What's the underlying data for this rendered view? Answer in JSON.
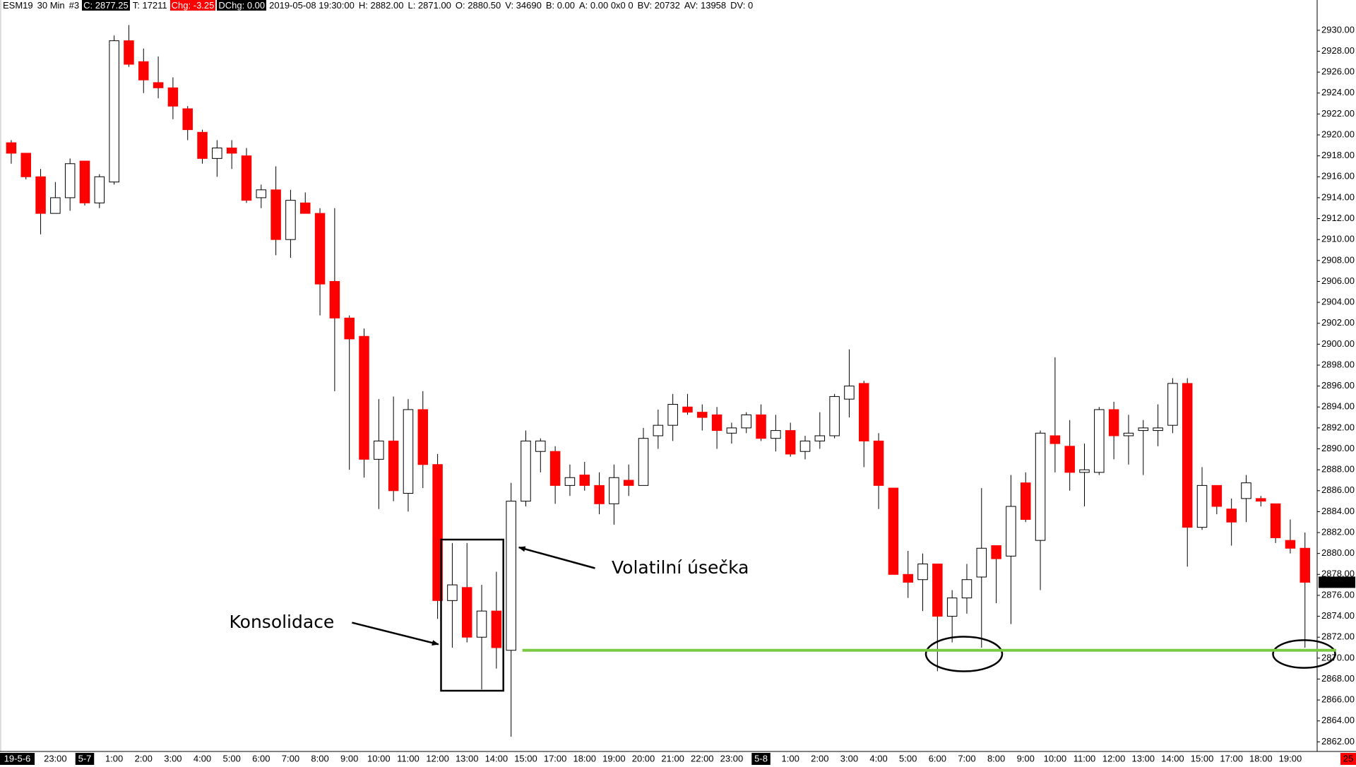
{
  "chart_data": {
    "type": "candlestick",
    "header": [
      {
        "text": "ESM19"
      },
      {
        "text": "30 Min"
      },
      {
        "text": "#3"
      },
      {
        "text": "C: 2877.25",
        "bg": "#000000"
      },
      {
        "text": "T: 17211"
      },
      {
        "text": "Chg: -3.25",
        "bg": "#ff0000"
      },
      {
        "text": "DChg: 0.00",
        "bg": "#000000"
      },
      {
        "text": "2019-05-08 19:30:00"
      },
      {
        "text": "H: 2882.00"
      },
      {
        "text": "L: 2871.00"
      },
      {
        "text": "O: 2880.50"
      },
      {
        "text": "V: 34690"
      },
      {
        "text": "B: 0.00"
      },
      {
        "text": "A: 0.00 0x0 0"
      },
      {
        "text": "BV: 20732"
      },
      {
        "text": "AV: 13958"
      },
      {
        "text": "DV: 0"
      }
    ],
    "categories": [
      "19-5-6",
      null,
      null,
      "23:00",
      null,
      "5-7",
      null,
      "1:00",
      null,
      "2:00",
      null,
      "3:00",
      null,
      "4:00",
      null,
      "5:00",
      null,
      "6:00",
      null,
      "7:00",
      null,
      "8:00",
      null,
      "9:00",
      null,
      "10:00",
      null,
      "11:00",
      null,
      "12:00",
      null,
      "13:00",
      null,
      "14:00",
      null,
      "15:00",
      null,
      "17:00",
      null,
      "18:00",
      null,
      "19:00",
      null,
      "20:00",
      null,
      "21:00",
      null,
      "22:00",
      null,
      "23:00",
      null,
      "5-8",
      null,
      "1:00",
      null,
      "2:00",
      null,
      "3:00",
      null,
      "4:00",
      null,
      "5:00",
      null,
      "6:00",
      null,
      "7:00",
      null,
      "8:00",
      null,
      "9:00",
      null,
      "10:00",
      null,
      "11:00",
      null,
      "12:00",
      null,
      "13:00",
      null,
      "14:00",
      null,
      "15:00",
      null,
      "17:00",
      null,
      "18:00",
      null,
      "19:00",
      null
    ],
    "open": [
      2919.25,
      2918.25,
      2916,
      2912.5,
      2914,
      2917.5,
      2913.5,
      2915.5,
      2929,
      2927,
      2925,
      2924.5,
      2922.5,
      2920.25,
      2917.75,
      2918.75,
      2918,
      2914,
      2914.75,
      2910,
      2913.5,
      2912.5,
      2906,
      2902.5,
      2900.75,
      2889,
      2890.75,
      2885.75,
      2893.75,
      2888.5,
      2875.5,
      2876.75,
      2872,
      2874.5,
      2870.75,
      2885,
      2889.75,
      2889.75,
      2886.5,
      2887.5,
      2886.5,
      2884.75,
      2887,
      2886.5,
      2891.25,
      2892.25,
      2894,
      2893.5,
      2893.25,
      2891.5,
      2892,
      2893.25,
      2891,
      2891.75,
      2889.75,
      2890.75,
      2891.25,
      2894.75,
      2896.25,
      2890.75,
      2886.25,
      2878,
      2877.5,
      2879,
      2874,
      2875.75,
      2877.75,
      2880.75,
      2879.75,
      2886.75,
      2881.25,
      2891.25,
      2890.25,
      2887.75,
      2887.75,
      2893.75,
      2891.25,
      2891.75,
      2891.75,
      2892.25,
      2896.25,
      2882.5,
      2886.5,
      2884.25,
      2885.25,
      2885.25,
      2884.75,
      2881.25,
      2880.5
    ],
    "high": [
      2919.5,
      2918.25,
      2916.75,
      2915.5,
      2917.75,
      2917.5,
      2916.25,
      2929.5,
      2930.5,
      2928.25,
      2927.5,
      2925.5,
      2922.75,
      2920.5,
      2919.5,
      2919.5,
      2918.75,
      2915.25,
      2917,
      2914.75,
      2914.5,
      2913,
      2913,
      2902.75,
      2901.5,
      2894.75,
      2895,
      2894.75,
      2895.5,
      2889.5,
      2881,
      2881,
      2877,
      2878.25,
      2886.75,
      2891.75,
      2891,
      2890.25,
      2888.5,
      2888.75,
      2887.75,
      2888.5,
      2888.5,
      2892,
      2893.75,
      2895.25,
      2895.25,
      2894.25,
      2894,
      2892.5,
      2893.5,
      2894.25,
      2893.25,
      2892.5,
      2891.25,
      2893.5,
      2895.25,
      2899.5,
      2896.5,
      2891.5,
      2886.25,
      2880.25,
      2880,
      2879,
      2876.5,
      2879,
      2886.25,
      2880.75,
      2887.5,
      2887.75,
      2891.75,
      2898.75,
      2892.75,
      2890.5,
      2894,
      2894.5,
      2893.25,
      2892.75,
      2894.25,
      2896.75,
      2896.75,
      2888.25,
      2886.5,
      2885.25,
      2887.5,
      2885.5,
      2884.75,
      2883.25,
      2882
    ],
    "low": [
      2917.25,
      2915.75,
      2910.5,
      2912.5,
      2912.75,
      2913.25,
      2913,
      2915.25,
      2926.5,
      2924,
      2923.5,
      2921.5,
      2919.5,
      2917.25,
      2916,
      2916.75,
      2913.5,
      2913,
      2908.5,
      2908.25,
      2912.5,
      2902.75,
      2895.5,
      2888,
      2887.25,
      2884.25,
      2885,
      2884,
      2886.25,
      2873.75,
      2871,
      2871.5,
      2867,
      2869,
      2862.5,
      2884.5,
      2887.75,
      2884.75,
      2885.5,
      2886,
      2883.75,
      2882.75,
      2885.5,
      2886.5,
      2890,
      2890.75,
      2893.25,
      2891.75,
      2890,
      2890.5,
      2891.5,
      2890.75,
      2889.75,
      2889.25,
      2889,
      2890,
      2891,
      2893,
      2888.25,
      2884.25,
      2878,
      2875.75,
      2874.5,
      2868.75,
      2871.5,
      2874.25,
      2871,
      2875.25,
      2873.25,
      2883,
      2876.5,
      2887.75,
      2886,
      2884.5,
      2887.5,
      2889,
      2888.5,
      2887.5,
      2890.25,
      2891.5,
      2878.75,
      2882.25,
      2883.75,
      2880.75,
      2883,
      2884.5,
      2881,
      2880,
      2871
    ],
    "close": [
      2918.25,
      2916,
      2912.5,
      2914,
      2917.25,
      2913.5,
      2916,
      2929,
      2926.75,
      2925.25,
      2924.5,
      2922.75,
      2920.5,
      2917.75,
      2918.75,
      2918.25,
      2913.75,
      2914.75,
      2910,
      2913.75,
      2912.5,
      2905.75,
      2902.5,
      2900.5,
      2889,
      2890.75,
      2886,
      2893.75,
      2888.5,
      2875.5,
      2877,
      2872,
      2874.5,
      2871,
      2885,
      2890.75,
      2890.75,
      2886.5,
      2887.25,
      2886.5,
      2884.75,
      2887.25,
      2886.5,
      2891,
      2892.25,
      2894.25,
      2893.5,
      2893,
      2891.75,
      2892,
      2893.25,
      2891,
      2891.75,
      2889.5,
      2890.75,
      2891.25,
      2895,
      2896,
      2890.75,
      2886.5,
      2878,
      2877.25,
      2879,
      2874,
      2875.75,
      2877.5,
      2880.5,
      2879.5,
      2884.5,
      2883.25,
      2891.5,
      2890.5,
      2887.75,
      2888,
      2893.75,
      2891.25,
      2891.5,
      2892,
      2892,
      2896.25,
      2882.5,
      2886.5,
      2884.5,
      2883,
      2886.75,
      2885,
      2881.5,
      2880.5,
      2877.25
    ],
    "up_color": "#ffffff",
    "down_color": "#ff0000",
    "ylim": [
      2861,
      2933
    ],
    "yticks": [
      {
        "value": 2862,
        "label": "2862.00"
      },
      {
        "value": 2864,
        "label": "2864.00"
      },
      {
        "value": 2866,
        "label": "2866.00"
      },
      {
        "value": 2868,
        "label": "2868.00"
      },
      {
        "value": 2870,
        "label": "2870.00"
      },
      {
        "value": 2872,
        "label": "2872.00"
      },
      {
        "value": 2874,
        "label": "2874.00"
      },
      {
        "value": 2876,
        "label": "2876.00"
      },
      {
        "value": 2878,
        "label": "2878.00"
      },
      {
        "value": 2880,
        "label": "2880.00"
      },
      {
        "value": 2882,
        "label": "2882.00"
      },
      {
        "value": 2884,
        "label": "2884.00"
      },
      {
        "value": 2886,
        "label": "2886.00"
      },
      {
        "value": 2888,
        "label": "2888.00"
      },
      {
        "value": 2890,
        "label": "2890.00"
      },
      {
        "value": 2892,
        "label": "2892.00"
      },
      {
        "value": 2894,
        "label": "2894.00"
      },
      {
        "value": 2896,
        "label": "2896.00"
      },
      {
        "value": 2898,
        "label": "2898.00"
      },
      {
        "value": 2900,
        "label": "2900.00"
      },
      {
        "value": 2902,
        "label": "2902.00"
      },
      {
        "value": 2904,
        "label": "2904.00"
      },
      {
        "value": 2906,
        "label": "2906.00"
      },
      {
        "value": 2908,
        "label": "2908.00"
      },
      {
        "value": 2910,
        "label": "2910.00"
      },
      {
        "value": 2912,
        "label": "2912.00"
      },
      {
        "value": 2914,
        "label": "2914.00"
      },
      {
        "value": 2916,
        "label": "2916.00"
      },
      {
        "value": 2918,
        "label": "2918.00"
      },
      {
        "value": 2920,
        "label": "2920.00"
      },
      {
        "value": 2922,
        "label": "2922.00"
      },
      {
        "value": 2924,
        "label": "2924.00"
      },
      {
        "value": 2926,
        "label": "2926.00"
      },
      {
        "value": 2928,
        "label": "2928.00"
      },
      {
        "value": 2930,
        "label": "2930.00"
      }
    ],
    "support_line": {
      "value": 2870.75,
      "color": "#7ac943"
    },
    "time_marker_label": "25",
    "annotations": [
      "Konsolidace",
      "Volatilní úsečka"
    ]
  }
}
